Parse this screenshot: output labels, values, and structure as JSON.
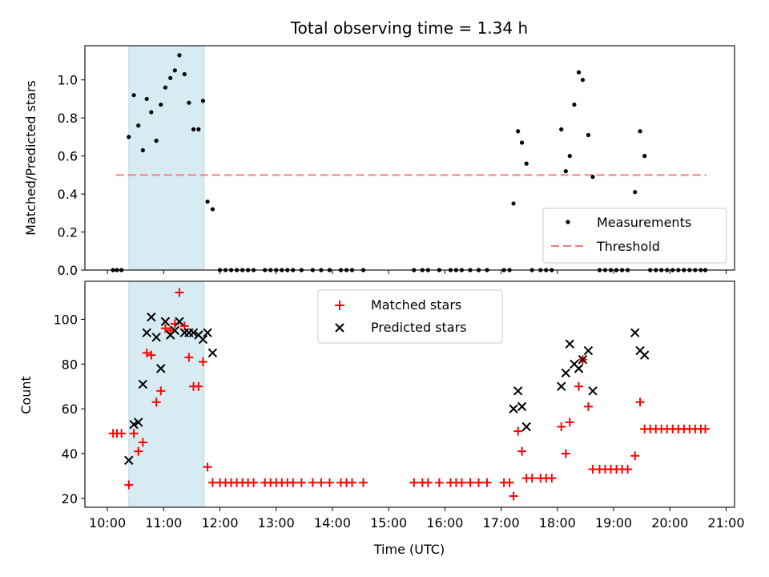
{
  "chart_data": [
    {
      "type": "scatter",
      "title": "Total observing time = 1.34 h",
      "ylabel": "Matched/Predicted stars",
      "ylim": [
        0,
        1.18
      ],
      "yticks": [
        "0.0",
        "0.2",
        "0.4",
        "0.6",
        "0.8",
        "1.0"
      ],
      "xlim": [
        9.6,
        21.15
      ],
      "shaded_span": [
        10.38,
        11.72
      ],
      "threshold": {
        "name": "Threshold",
        "y": 0.5,
        "x_range": [
          10.15,
          20.65
        ],
        "color": "#f08080"
      },
      "legend": {
        "placement": "lower-right"
      },
      "series": [
        {
          "name": "Measurements",
          "color": "#000000",
          "points": [
            [
              10.1,
              0
            ],
            [
              10.17,
              0
            ],
            [
              10.25,
              0
            ],
            [
              10.38,
              0.7
            ],
            [
              10.47,
              0.92
            ],
            [
              10.55,
              0.76
            ],
            [
              10.63,
              0.63
            ],
            [
              10.7,
              0.9
            ],
            [
              10.78,
              0.83
            ],
            [
              10.87,
              0.68
            ],
            [
              10.95,
              0.87
            ],
            [
              11.03,
              0.96
            ],
            [
              11.12,
              1.01
            ],
            [
              11.2,
              1.05
            ],
            [
              11.28,
              1.13
            ],
            [
              11.37,
              1.03
            ],
            [
              11.45,
              0.88
            ],
            [
              11.53,
              0.74
            ],
            [
              11.62,
              0.74
            ],
            [
              11.7,
              0.89
            ],
            [
              11.78,
              0.36
            ],
            [
              11.87,
              0.32
            ],
            [
              12.0,
              0
            ],
            [
              12.1,
              0
            ],
            [
              12.2,
              0
            ],
            [
              12.3,
              0
            ],
            [
              12.4,
              0
            ],
            [
              12.5,
              0
            ],
            [
              12.6,
              0
            ],
            [
              12.8,
              0
            ],
            [
              12.9,
              0
            ],
            [
              13.0,
              0
            ],
            [
              13.1,
              0
            ],
            [
              13.2,
              0
            ],
            [
              13.3,
              0
            ],
            [
              13.45,
              0
            ],
            [
              13.65,
              0
            ],
            [
              13.8,
              0
            ],
            [
              13.95,
              0
            ],
            [
              14.15,
              0
            ],
            [
              14.25,
              0
            ],
            [
              14.35,
              0
            ],
            [
              14.55,
              0
            ],
            [
              15.45,
              0
            ],
            [
              15.6,
              0
            ],
            [
              15.7,
              0
            ],
            [
              15.9,
              0
            ],
            [
              16.1,
              0
            ],
            [
              16.2,
              0
            ],
            [
              16.3,
              0
            ],
            [
              16.45,
              0
            ],
            [
              16.6,
              0
            ],
            [
              16.75,
              0
            ],
            [
              17.05,
              0
            ],
            [
              17.15,
              0
            ],
            [
              17.22,
              0.35
            ],
            [
              17.3,
              0.73
            ],
            [
              17.37,
              0.67
            ],
            [
              17.45,
              0.56
            ],
            [
              17.55,
              0
            ],
            [
              17.7,
              0
            ],
            [
              17.8,
              0
            ],
            [
              17.9,
              0
            ],
            [
              18.07,
              0.74
            ],
            [
              18.15,
              0.52
            ],
            [
              18.22,
              0.6
            ],
            [
              18.3,
              0.87
            ],
            [
              18.38,
              1.04
            ],
            [
              18.45,
              1.0
            ],
            [
              18.55,
              0.71
            ],
            [
              18.63,
              0.49
            ],
            [
              18.75,
              0
            ],
            [
              18.85,
              0
            ],
            [
              18.95,
              0
            ],
            [
              19.05,
              0
            ],
            [
              19.15,
              0
            ],
            [
              19.25,
              0
            ],
            [
              19.38,
              0.41
            ],
            [
              19.47,
              0.73
            ],
            [
              19.55,
              0.6
            ],
            [
              19.65,
              0
            ],
            [
              19.75,
              0
            ],
            [
              19.85,
              0
            ],
            [
              19.95,
              0
            ],
            [
              20.05,
              0
            ],
            [
              20.15,
              0
            ],
            [
              20.25,
              0
            ],
            [
              20.35,
              0
            ],
            [
              20.45,
              0
            ],
            [
              20.55,
              0
            ],
            [
              20.63,
              0
            ]
          ]
        }
      ]
    },
    {
      "type": "scatter",
      "xlabel": "Time (UTC)",
      "ylabel": "Count",
      "ylim": [
        16,
        117
      ],
      "yticks": [
        "20",
        "40",
        "60",
        "80",
        "100"
      ],
      "xlim": [
        9.6,
        21.15
      ],
      "xticks": [
        "10:00",
        "11:00",
        "12:00",
        "13:00",
        "14:00",
        "15:00",
        "16:00",
        "17:00",
        "18:00",
        "19:00",
        "20:00",
        "21:00"
      ],
      "shaded_span": [
        10.38,
        11.72
      ],
      "legend": {
        "placement": "top-center"
      },
      "series": [
        {
          "name": "Matched stars",
          "marker": "plus",
          "color": "#ff0000",
          "points": [
            [
              10.1,
              49
            ],
            [
              10.17,
              49
            ],
            [
              10.25,
              49
            ],
            [
              10.38,
              26
            ],
            [
              10.47,
              49
            ],
            [
              10.55,
              41
            ],
            [
              10.63,
              45
            ],
            [
              10.7,
              85
            ],
            [
              10.78,
              84
            ],
            [
              10.87,
              63
            ],
            [
              10.95,
              68
            ],
            [
              11.03,
              96
            ],
            [
              11.12,
              95
            ],
            [
              11.2,
              98
            ],
            [
              11.28,
              112
            ],
            [
              11.37,
              97
            ],
            [
              11.45,
              83
            ],
            [
              11.53,
              70
            ],
            [
              11.62,
              70
            ],
            [
              11.7,
              81
            ],
            [
              11.78,
              34
            ],
            [
              11.87,
              27
            ],
            [
              12.0,
              27
            ],
            [
              12.1,
              27
            ],
            [
              12.2,
              27
            ],
            [
              12.3,
              27
            ],
            [
              12.4,
              27
            ],
            [
              12.5,
              27
            ],
            [
              12.6,
              27
            ],
            [
              12.8,
              27
            ],
            [
              12.9,
              27
            ],
            [
              13.0,
              27
            ],
            [
              13.1,
              27
            ],
            [
              13.2,
              27
            ],
            [
              13.3,
              27
            ],
            [
              13.45,
              27
            ],
            [
              13.65,
              27
            ],
            [
              13.8,
              27
            ],
            [
              13.95,
              27
            ],
            [
              14.15,
              27
            ],
            [
              14.25,
              27
            ],
            [
              14.35,
              27
            ],
            [
              14.55,
              27
            ],
            [
              15.45,
              27
            ],
            [
              15.6,
              27
            ],
            [
              15.7,
              27
            ],
            [
              15.9,
              27
            ],
            [
              16.1,
              27
            ],
            [
              16.2,
              27
            ],
            [
              16.3,
              27
            ],
            [
              16.45,
              27
            ],
            [
              16.6,
              27
            ],
            [
              16.75,
              27
            ],
            [
              17.05,
              27
            ],
            [
              17.15,
              27
            ],
            [
              17.22,
              21
            ],
            [
              17.3,
              50
            ],
            [
              17.37,
              41
            ],
            [
              17.45,
              29
            ],
            [
              17.55,
              29
            ],
            [
              17.7,
              29
            ],
            [
              17.8,
              29
            ],
            [
              17.9,
              29
            ],
            [
              18.07,
              52
            ],
            [
              18.15,
              40
            ],
            [
              18.22,
              54
            ],
            [
              18.38,
              70
            ],
            [
              18.45,
              82
            ],
            [
              18.55,
              61
            ],
            [
              18.63,
              33
            ],
            [
              18.75,
              33
            ],
            [
              18.85,
              33
            ],
            [
              18.95,
              33
            ],
            [
              19.05,
              33
            ],
            [
              19.15,
              33
            ],
            [
              19.25,
              33
            ],
            [
              19.38,
              39
            ],
            [
              19.47,
              63
            ],
            [
              19.55,
              51
            ],
            [
              19.65,
              51
            ],
            [
              19.75,
              51
            ],
            [
              19.85,
              51
            ],
            [
              19.95,
              51
            ],
            [
              20.05,
              51
            ],
            [
              20.15,
              51
            ],
            [
              20.25,
              51
            ],
            [
              20.35,
              51
            ],
            [
              20.45,
              51
            ],
            [
              20.55,
              51
            ],
            [
              20.63,
              51
            ]
          ]
        },
        {
          "name": "Predicted stars",
          "marker": "x",
          "color": "#000000",
          "points": [
            [
              10.38,
              37
            ],
            [
              10.47,
              53
            ],
            [
              10.55,
              54
            ],
            [
              10.63,
              71
            ],
            [
              10.7,
              94
            ],
            [
              10.78,
              101
            ],
            [
              10.87,
              92
            ],
            [
              10.95,
              78
            ],
            [
              11.03,
              99
            ],
            [
              11.12,
              93
            ],
            [
              11.2,
              95
            ],
            [
              11.28,
              99
            ],
            [
              11.37,
              94
            ],
            [
              11.45,
              94
            ],
            [
              11.53,
              94
            ],
            [
              11.62,
              93
            ],
            [
              11.7,
              91
            ],
            [
              11.78,
              94
            ],
            [
              11.87,
              85
            ],
            [
              17.22,
              60
            ],
            [
              17.3,
              68
            ],
            [
              17.37,
              61
            ],
            [
              17.45,
              52
            ],
            [
              18.07,
              70
            ],
            [
              18.15,
              76
            ],
            [
              18.22,
              89
            ],
            [
              18.3,
              80
            ],
            [
              18.38,
              78
            ],
            [
              18.45,
              82
            ],
            [
              18.55,
              86
            ],
            [
              18.63,
              68
            ],
            [
              19.38,
              94
            ],
            [
              19.47,
              86
            ],
            [
              19.55,
              84
            ]
          ]
        }
      ]
    }
  ]
}
